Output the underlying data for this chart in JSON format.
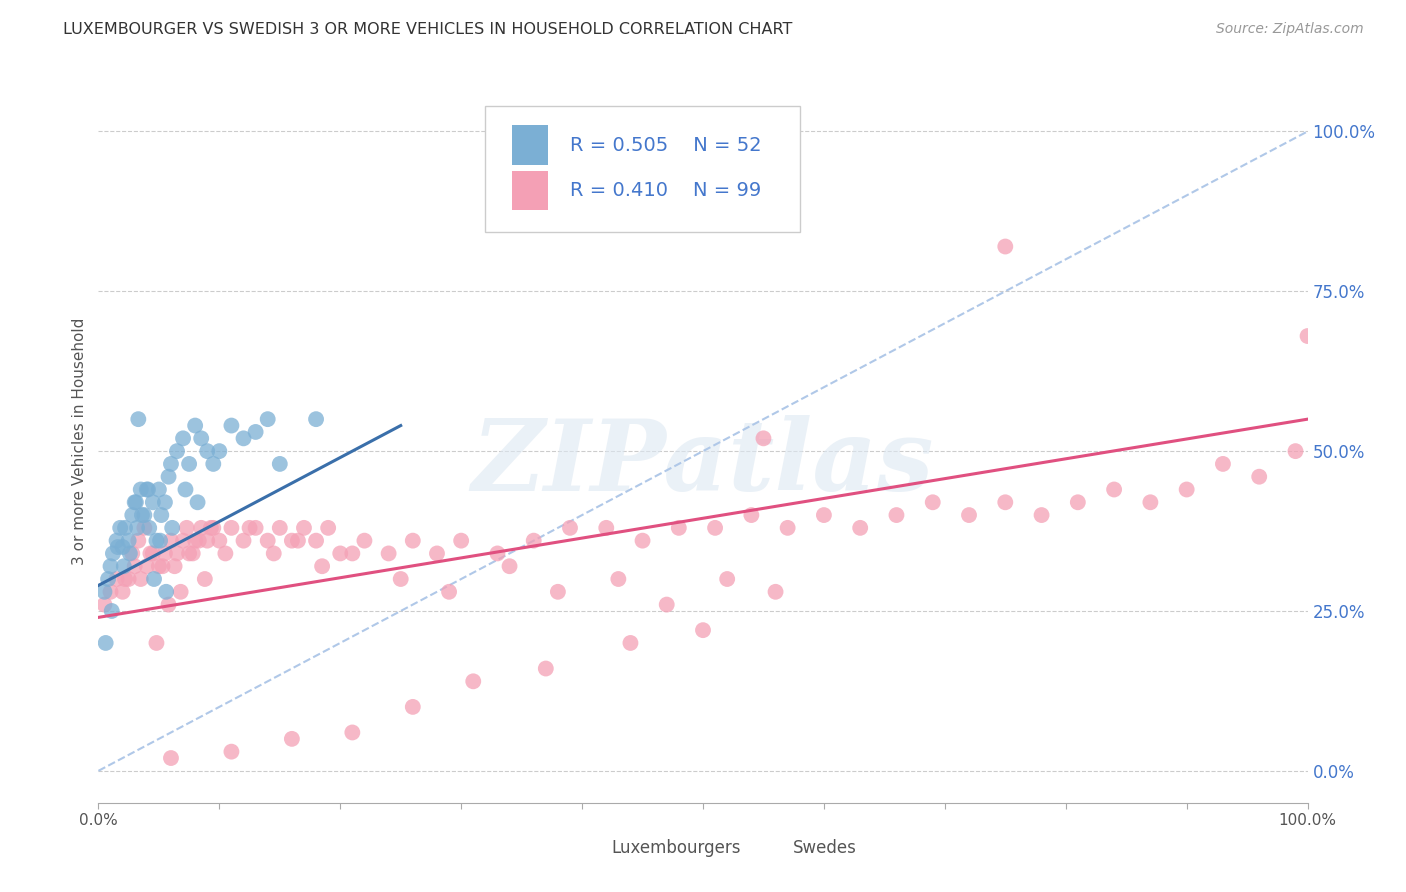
{
  "title": "LUXEMBOURGER VS SWEDISH 3 OR MORE VEHICLES IN HOUSEHOLD CORRELATION CHART",
  "source": "Source: ZipAtlas.com",
  "ylabel": "3 or more Vehicles in Household",
  "xlim": [
    0,
    100
  ],
  "ylim": [
    -5,
    108
  ],
  "right_yticks": [
    0,
    25,
    50,
    75,
    100
  ],
  "right_yticklabels": [
    "0.0%",
    "25.0%",
    "50.0%",
    "75.0%",
    "100.0%"
  ],
  "grid_color": "#cccccc",
  "background_color": "#ffffff",
  "lux_color": "#7bafd4",
  "swe_color": "#f4a0b5",
  "lux_line_color": "#3a6faa",
  "swe_line_color": "#e05080",
  "diag_color": "#b0c8e8",
  "legend_lux_label": "Luxembourgers",
  "legend_swe_label": "Swedes",
  "lux_R": 0.505,
  "lux_N": 52,
  "swe_R": 0.41,
  "swe_N": 99,
  "lux_line_x0": 0,
  "lux_line_y0": 29,
  "lux_line_x1": 25,
  "lux_line_y1": 54,
  "swe_line_x0": 0,
  "swe_line_y0": 24,
  "swe_line_x1": 100,
  "swe_line_y1": 55,
  "watermark": "ZIPatlas",
  "lux_x": [
    0.5,
    0.8,
    1.0,
    1.2,
    1.5,
    1.8,
    2.0,
    2.2,
    2.5,
    2.8,
    3.0,
    3.2,
    3.5,
    3.8,
    4.0,
    4.2,
    4.5,
    4.8,
    5.0,
    5.2,
    5.5,
    5.8,
    6.0,
    6.5,
    7.0,
    7.5,
    8.0,
    8.5,
    9.0,
    9.5,
    10.0,
    11.0,
    12.0,
    13.0,
    14.0,
    15.0,
    0.6,
    1.1,
    1.6,
    2.1,
    2.6,
    3.1,
    3.6,
    4.1,
    4.6,
    5.1,
    5.6,
    6.1,
    7.2,
    8.2,
    18.0,
    3.3
  ],
  "lux_y": [
    28,
    30,
    32,
    34,
    36,
    38,
    35,
    38,
    36,
    40,
    42,
    38,
    44,
    40,
    44,
    38,
    42,
    36,
    44,
    40,
    42,
    46,
    48,
    50,
    52,
    48,
    54,
    52,
    50,
    48,
    50,
    54,
    52,
    53,
    55,
    48,
    20,
    25,
    35,
    32,
    34,
    42,
    40,
    44,
    30,
    36,
    28,
    38,
    44,
    42,
    55,
    55
  ],
  "swe_x": [
    0.5,
    1.0,
    1.5,
    2.0,
    2.5,
    3.0,
    3.5,
    4.0,
    4.5,
    5.0,
    5.5,
    6.0,
    6.5,
    7.0,
    7.5,
    8.0,
    8.5,
    9.0,
    9.5,
    10.0,
    11.0,
    12.0,
    13.0,
    14.0,
    15.0,
    16.0,
    17.0,
    18.0,
    19.0,
    20.0,
    22.0,
    24.0,
    26.0,
    28.0,
    30.0,
    33.0,
    36.0,
    39.0,
    42.0,
    45.0,
    48.0,
    51.0,
    54.0,
    57.0,
    60.0,
    63.0,
    66.0,
    69.0,
    72.0,
    75.0,
    78.0,
    81.0,
    84.0,
    87.0,
    90.0,
    93.0,
    96.0,
    99.0,
    2.2,
    2.8,
    3.3,
    3.8,
    4.3,
    4.8,
    5.3,
    5.8,
    6.3,
    6.8,
    7.3,
    7.8,
    8.3,
    8.8,
    9.3,
    10.5,
    12.5,
    14.5,
    16.5,
    18.5,
    21.0,
    25.0,
    29.0,
    34.0,
    38.0,
    43.0,
    47.0,
    52.0,
    56.0,
    50.0,
    44.0,
    37.0,
    31.0,
    26.0,
    21.0,
    16.0,
    11.0,
    6.0,
    100.0,
    75.0,
    55.0
  ],
  "swe_y": [
    26,
    28,
    30,
    28,
    30,
    32,
    30,
    32,
    34,
    32,
    34,
    36,
    34,
    36,
    34,
    36,
    38,
    36,
    38,
    36,
    38,
    36,
    38,
    36,
    38,
    36,
    38,
    36,
    38,
    34,
    36,
    34,
    36,
    34,
    36,
    34,
    36,
    38,
    38,
    36,
    38,
    38,
    40,
    38,
    40,
    38,
    40,
    42,
    40,
    42,
    40,
    42,
    44,
    42,
    44,
    48,
    46,
    50,
    30,
    34,
    36,
    38,
    34,
    20,
    32,
    26,
    32,
    28,
    38,
    34,
    36,
    30,
    38,
    34,
    38,
    34,
    36,
    32,
    34,
    30,
    28,
    32,
    28,
    30,
    26,
    30,
    28,
    22,
    20,
    16,
    14,
    10,
    6,
    5,
    3,
    2,
    68,
    82,
    52
  ]
}
